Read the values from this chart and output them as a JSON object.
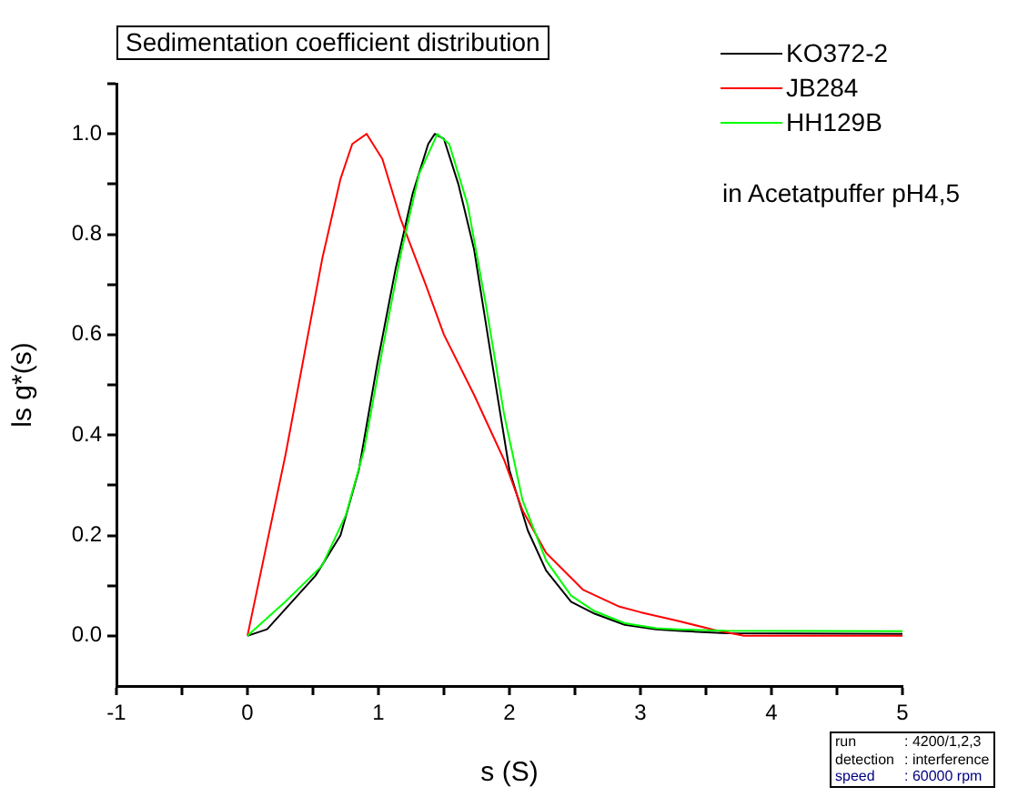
{
  "chart_data": {
    "type": "line",
    "title": "Sedimentation coefficient distribution",
    "xlabel": "s (S)",
    "ylabel": "ls g*(s)",
    "xlim": [
      -1,
      5
    ],
    "ylim": [
      -0.1,
      1.1
    ],
    "xticks": [
      -1,
      {
        "value": -0.5,
        "label": null
      },
      0,
      {
        "value": 0.5,
        "label": null
      },
      1,
      {
        "value": 1.5,
        "label": null
      },
      2,
      {
        "value": 2.5,
        "label": null
      },
      3,
      {
        "value": 3.5,
        "label": null
      },
      4,
      {
        "value": 4.5,
        "label": null
      },
      5
    ],
    "yticks": [
      {
        "value": 0.0,
        "label": "0.0"
      },
      {
        "value": 0.1,
        "label": null
      },
      {
        "value": 0.2,
        "label": "0.2"
      },
      {
        "value": 0.3,
        "label": null
      },
      {
        "value": 0.4,
        "label": "0.4"
      },
      {
        "value": 0.5,
        "label": null
      },
      {
        "value": 0.6,
        "label": "0.6"
      },
      {
        "value": 0.7,
        "label": null
      },
      {
        "value": 0.8,
        "label": "0.8"
      },
      {
        "value": 0.9,
        "label": null
      },
      {
        "value": 1.0,
        "label": "1.0"
      },
      {
        "value": 1.1,
        "label": null
      }
    ],
    "grid": false,
    "legend": "top right",
    "marker": "none",
    "line_style": "solid",
    "annotations": [
      "in Acetatpuffer pH4,5",
      "run : 4200/1,2,3",
      "detection : interference",
      "speed : 60000 rpm"
    ],
    "series": [
      {
        "name": "KO372-2",
        "color": "#000000",
        "x": [
          0,
          0.15,
          0.34,
          0.52,
          0.71,
          0.85,
          0.99,
          1.13,
          1.26,
          1.38,
          1.43,
          1.5,
          1.61,
          1.73,
          1.87,
          2.0,
          2.14,
          2.28,
          2.47,
          2.65,
          2.88,
          3.12,
          3.28,
          3.65,
          5
        ],
        "values": [
          0,
          0.013,
          0.068,
          0.12,
          0.2,
          0.33,
          0.54,
          0.73,
          0.88,
          0.98,
          1.0,
          0.99,
          0.9,
          0.77,
          0.54,
          0.33,
          0.21,
          0.13,
          0.068,
          0.044,
          0.022,
          0.013,
          0.01,
          0.005,
          0.004
        ]
      },
      {
        "name": "JB284",
        "color": "#ff0000",
        "x": [
          0,
          0.29,
          0.57,
          0.71,
          0.8,
          0.91,
          1.03,
          1.17,
          1.36,
          1.5,
          1.73,
          1.96,
          2.1,
          2.28,
          2.56,
          2.84,
          3.0,
          3.28,
          3.56,
          3.79,
          5
        ],
        "values": [
          0,
          0.36,
          0.75,
          0.91,
          0.98,
          1.0,
          0.95,
          0.83,
          0.7,
          0.6,
          0.48,
          0.35,
          0.25,
          0.165,
          0.092,
          0.058,
          0.047,
          0.03,
          0.012,
          0.0,
          0.0
        ]
      },
      {
        "name": "HH129B",
        "color": "#00ff00",
        "x": [
          0,
          0.29,
          0.57,
          0.75,
          0.89,
          1.03,
          1.17,
          1.31,
          1.45,
          1.54,
          1.68,
          1.82,
          1.96,
          2.1,
          2.28,
          2.47,
          2.65,
          2.88,
          3.12,
          3.28,
          3.65,
          5
        ],
        "values": [
          0,
          0.068,
          0.14,
          0.24,
          0.37,
          0.57,
          0.76,
          0.92,
          1.0,
          0.98,
          0.86,
          0.66,
          0.44,
          0.27,
          0.15,
          0.08,
          0.049,
          0.025,
          0.015,
          0.013,
          0.01,
          0.009
        ]
      }
    ]
  }
}
